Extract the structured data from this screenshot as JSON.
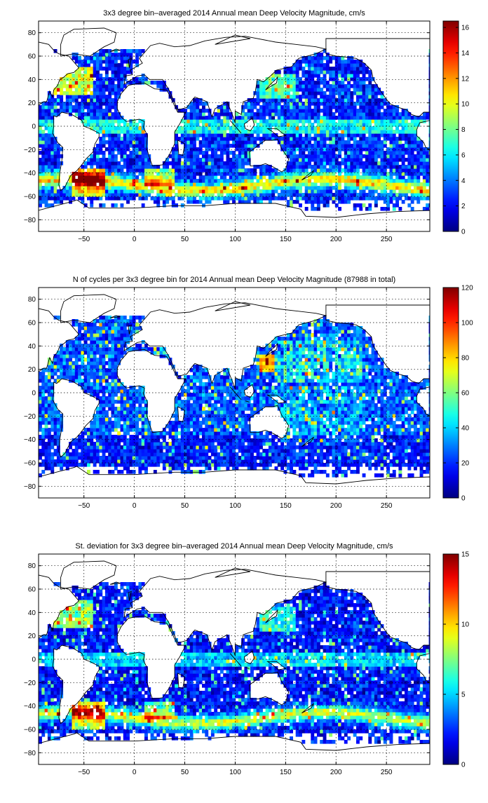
{
  "chart_data": [
    {
      "type": "heatmap",
      "title": "3x3 degree bin–averaged 2014 Annual mean Deep Velocity Magnitude, cm/s",
      "xlabel": "",
      "ylabel": "",
      "xlim": [
        -95,
        293
      ],
      "ylim": [
        -90,
        90
      ],
      "x_ticks": [
        -50,
        0,
        50,
        100,
        150,
        200,
        250
      ],
      "y_ticks": [
        80,
        60,
        40,
        20,
        0,
        -20,
        -40,
        -60,
        -80
      ],
      "grid": true,
      "grid_style": "dotted",
      "colorbar": {
        "min": 0,
        "max": 16.5,
        "ticks": [
          0,
          2,
          4,
          6,
          8,
          10,
          12,
          14,
          16
        ],
        "colormap": "jet"
      },
      "field": "velocity",
      "bin_size_deg": 3
    },
    {
      "type": "heatmap",
      "title": "N of cycles per 3x3 degree bin for 2014 Annual mean Deep Velocity Magnitude (87988 in total)",
      "xlabel": "",
      "ylabel": "",
      "xlim": [
        -95,
        293
      ],
      "ylim": [
        -90,
        90
      ],
      "x_ticks": [
        -50,
        0,
        50,
        100,
        150,
        200,
        250
      ],
      "y_ticks": [
        80,
        60,
        40,
        20,
        0,
        -20,
        -40,
        -60,
        -80
      ],
      "grid": true,
      "grid_style": "dotted",
      "colorbar": {
        "min": 0,
        "max": 120,
        "ticks": [
          0,
          20,
          40,
          60,
          80,
          100,
          120
        ],
        "colormap": "jet"
      },
      "field": "count",
      "bin_size_deg": 3
    },
    {
      "type": "heatmap",
      "title": "St. deviation for 3x3 degree bin–averaged 2014 Annual mean Deep Velocity Magnitude, cm/s",
      "xlabel": "",
      "ylabel": "",
      "xlim": [
        -95,
        293
      ],
      "ylim": [
        -90,
        90
      ],
      "x_ticks": [
        -50,
        0,
        50,
        100,
        150,
        200,
        250
      ],
      "y_ticks": [
        80,
        60,
        40,
        20,
        0,
        -20,
        -40,
        -60,
        -80
      ],
      "grid": true,
      "grid_style": "dotted",
      "colorbar": {
        "min": 0,
        "max": 15,
        "ticks": [
          0,
          5,
          10,
          15
        ],
        "colormap": "jet"
      },
      "field": "stdev",
      "bin_size_deg": 3
    }
  ]
}
